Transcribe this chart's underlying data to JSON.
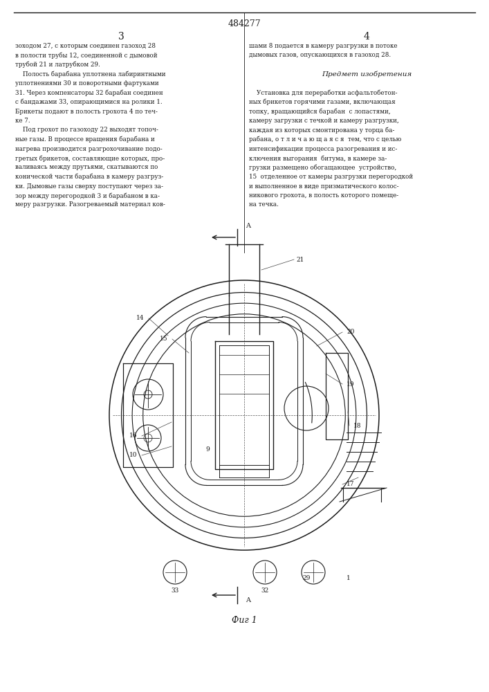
{
  "patent_number": "484277",
  "page_left": "3",
  "page_right": "4",
  "fig_caption": "Фиг 1",
  "text_left_col": [
    "зоходом 27, с которым соединен газоход 28",
    "в полости трубы 12, соединенной с дымовой",
    "трубой 21 и латрубком 29.",
    "    Полость барабана уплотнена лабиринтными",
    "уплотнениями 30 и поворотными фартуками",
    "31. Через компенсаторы 32 барабан соединен",
    "с бандажами 33, опирающимися на ролики 1.",
    "Брикеты подают в полость грохота 4 по теч-",
    "ке 7.",
    "    Под грохот по газоходу 22 выходят топоч-",
    "ные газы. В процессе вращения барабана и",
    "нагрева производится разгрохочивание подо-",
    "гретых брикетов, составляющие которых, про-",
    "валиваясь между прутьями, скатываются по",
    "конической части барабана в камеру разгруз-",
    "ки. Дымовые газы сверху поступают через за-",
    "зор между перегородкой 3 и барабаном в ка-",
    "меру разгрузки. Разогреваемый материал ков-"
  ],
  "text_right_col": [
    "шами 8 подается в камеру разгрузки в потоке",
    "дымовых газов, опускающихся в газоход 28.",
    "",
    "          Предмет изобретения",
    "",
    "    Установка для переработки асфальтобетон-",
    "ных брикетов горячими газами, включающая",
    "топку, вращающийся барабан  с лопастями,",
    "камеру загрузки с течкой и камеру разгрузки,",
    "каждая из которых смонтирована у торца ба-",
    "рабана, о т л и ч а ю щ а я с я  тем, что с целью",
    "интенсификации процесса разогревания и ис-",
    "ключения выгорания  битума, в камере за-",
    "грузки размещено обогащающее  устройство,",
    "15  отделенное от камеры разгрузки перегородкой",
    "и выполненное в виде призматического колос-",
    "никового грохота, в полость которого помеще-",
    "на течка."
  ],
  "bg_color": "#ffffff",
  "text_color": "#1a1a1a",
  "line_color": "#1a1a1a"
}
